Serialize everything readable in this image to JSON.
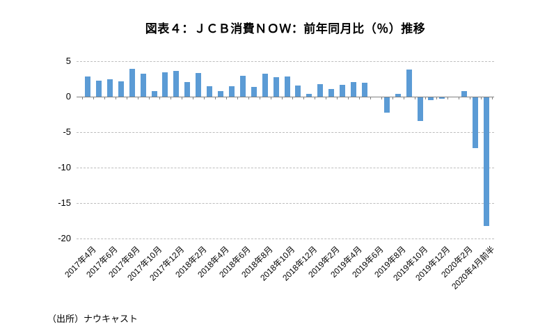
{
  "title": "図表４：ＪＣＢ消費ＮＯＷ：前年同月比（％）推移",
  "source_note": "（出所）ナウキャスト",
  "chart_data": {
    "type": "bar",
    "title": "図表４：ＪＣＢ消費ＮＯＷ：前年同月比（％）推移",
    "xlabel": "",
    "ylabel": "",
    "categories": [
      "2017年4月",
      "2017年5月",
      "2017年6月",
      "2017年7月",
      "2017年8月",
      "2017年9月",
      "2017年10月",
      "2017年11月",
      "2017年12月",
      "2018年1月",
      "2018年2月",
      "2018年3月",
      "2018年4月",
      "2018年5月",
      "2018年6月",
      "2018年7月",
      "2018年8月",
      "2018年9月",
      "2018年10月",
      "2018年11月",
      "2018年12月",
      "2019年1月",
      "2019年2月",
      "2019年3月",
      "2019年4月",
      "2019年5月",
      "2019年6月",
      "2019年7月",
      "2019年8月",
      "2019年9月",
      "2019年10月",
      "2019年11月",
      "2019年12月",
      "2020年1月",
      "2020年2月",
      "2020年3月",
      "2020年4月前半"
    ],
    "values": [
      2.8,
      2.3,
      2.5,
      2.2,
      3.9,
      3.2,
      0.8,
      3.4,
      3.6,
      2.1,
      3.3,
      1.5,
      0.8,
      1.5,
      2.9,
      1.4,
      3.2,
      2.7,
      2.8,
      1.6,
      0.4,
      1.8,
      1.1,
      1.7,
      2.1,
      2.0,
      0.0,
      -2.2,
      0.4,
      3.8,
      -3.3,
      -0.4,
      -0.2,
      0.0,
      0.8,
      -7.2,
      -18.1
    ],
    "visible_x_tick_labels": [
      "2017年4月",
      "2017年6月",
      "2017年8月",
      "2017年10月",
      "2017年12月",
      "2018年2月",
      "2018年4月",
      "2018年6月",
      "2018年8月",
      "2018年10月",
      "2018年12月",
      "2019年2月",
      "2019年4月",
      "2019年6月",
      "2019年8月",
      "2019年10月",
      "2019年12月",
      "2020年2月",
      "2020年4月前半"
    ],
    "x_label_every_n_bars": 2,
    "ylim": [
      -20,
      5
    ],
    "y_ticks": [
      5,
      0,
      -5,
      -10,
      -15,
      -20
    ],
    "grid": "horizontal",
    "legend_position": "none",
    "bar_color": "#5B9BD5",
    "gridline_color": "#BDBDBD",
    "axis_color": "#808080"
  }
}
